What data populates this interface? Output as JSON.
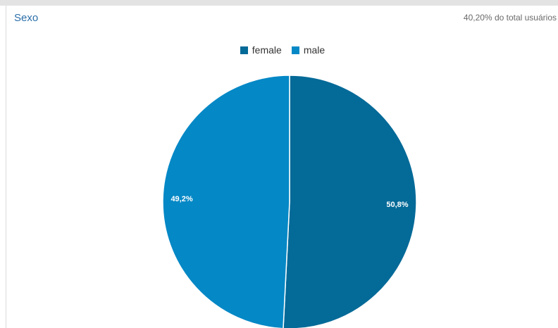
{
  "card": {
    "title": "Sexo",
    "subtitle": "40,20% do total usuários"
  },
  "chart_data": {
    "type": "pie",
    "title": "Sexo",
    "legend_placement": "top-center",
    "slices": [
      {
        "name": "female",
        "value": 50.8,
        "label": "50,8%",
        "color": "#046a98"
      },
      {
        "name": "male",
        "value": 49.2,
        "label": "49,2%",
        "color": "#0488c6"
      }
    ]
  }
}
